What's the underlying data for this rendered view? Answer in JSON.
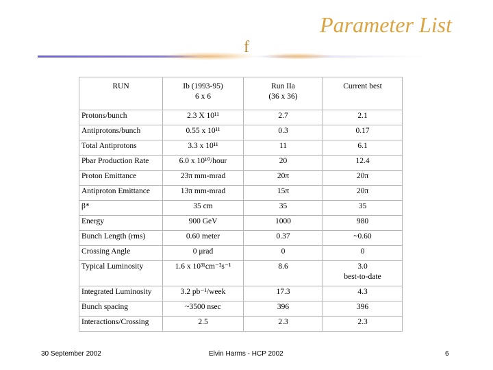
{
  "slide": {
    "title": "Parameter List",
    "decoration_glyph": "f"
  },
  "table": {
    "headers": [
      "RUN",
      [
        "Ib (1993-95)",
        "6 x 6"
      ],
      [
        "Run IIa",
        "(36 x 36)"
      ],
      "Current best"
    ],
    "rows": [
      {
        "label": "Protons/bunch",
        "cells": [
          "2.3 X 10¹¹",
          "2.7",
          "2.1"
        ]
      },
      {
        "label": "Antiprotons/bunch",
        "cells": [
          "0.55 x 10¹¹",
          "0.3",
          "0.17"
        ]
      },
      {
        "label": "Total Antiprotons",
        "cells": [
          "3.3 x 10¹¹",
          "11",
          "6.1"
        ]
      },
      {
        "label": "Pbar Production Rate",
        "cells": [
          "6.0 x 10¹⁰/hour",
          "20",
          "12.4"
        ]
      },
      {
        "label": "Proton Emittance",
        "cells": [
          "23π mm-mrad",
          "20π",
          "20π"
        ]
      },
      {
        "label": "Antiproton Emittance",
        "cells": [
          "13π mm-mrad",
          "15π",
          "20π"
        ]
      },
      {
        "label": "β*",
        "cells": [
          "35 cm",
          "35",
          "35"
        ]
      },
      {
        "label": "Energy",
        "cells": [
          "900 GeV",
          "1000",
          "980"
        ]
      },
      {
        "label": "Bunch Length (rms)",
        "cells": [
          "0.60 meter",
          "0.37",
          "~0.60"
        ]
      },
      {
        "label": "Crossing Angle",
        "cells": [
          "0 μrad",
          "0",
          "0"
        ]
      },
      {
        "label": "Typical Luminosity",
        "cells": [
          "1.6 x 10³¹cm⁻²s⁻¹",
          "8.6",
          [
            "3.0",
            "best-to-date"
          ]
        ]
      },
      {
        "label": "Integrated Luminosity",
        "cells": [
          "3.2 pb⁻¹/week",
          "17.3",
          "4.3"
        ]
      },
      {
        "label": "Bunch spacing",
        "cells": [
          "~3500 nsec",
          "396",
          "396"
        ]
      },
      {
        "label": "Interactions/Crossing",
        "cells": [
          "2.5",
          "2.3",
          "2.3"
        ]
      }
    ]
  },
  "footer": {
    "date": "30 September 2002",
    "presenter": "Elvin Harms - HCP 2002",
    "page_number": "6"
  },
  "colors": {
    "title": "#d9a441",
    "rule": "#6a64c8",
    "glow": "#f2c07a",
    "grid": "#b3b3b3"
  }
}
